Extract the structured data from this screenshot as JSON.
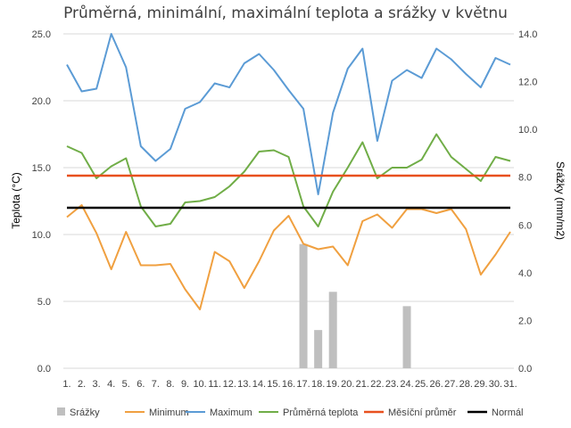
{
  "chart_data": {
    "type": "line",
    "title": "Průměrná, minimální, maximální teplota a srážky v květnu",
    "ylabel": "Teplota (°C)",
    "y2label": "Srážky (mm/m2)",
    "ylim": [
      0,
      25
    ],
    "y2lim": [
      0,
      14
    ],
    "yticks": [
      "0.0",
      "5.0",
      "10.0",
      "15.0",
      "20.0",
      "25.0"
    ],
    "y2ticks": [
      "0.0",
      "2.0",
      "4.0",
      "6.0",
      "8.0",
      "10.0",
      "12.0",
      "14.0"
    ],
    "categories": [
      "1.",
      "2.",
      "3.",
      "4.",
      "5.",
      "6.",
      "7.",
      "8.",
      "9.",
      "10.",
      "11.",
      "12.",
      "13.",
      "14.",
      "15.",
      "16.",
      "17.",
      "18.",
      "19.",
      "20.",
      "21.",
      "22.",
      "23.",
      "24.",
      "25.",
      "26.",
      "27.",
      "28.",
      "29.",
      "30.",
      "31."
    ],
    "grid": true,
    "legend_position": "bottom",
    "series": [
      {
        "name": "Srážky",
        "kind": "bar",
        "axis": "right",
        "color": "#bfbfbf",
        "values": [
          0,
          0,
          0,
          0,
          0,
          0,
          0,
          0,
          0,
          0,
          0,
          0,
          0,
          0,
          0,
          0,
          5.2,
          1.6,
          3.2,
          0,
          0,
          0,
          0,
          2.6,
          0,
          0,
          0,
          0,
          0,
          0,
          0
        ]
      },
      {
        "name": "Minimum",
        "kind": "line",
        "axis": "left",
        "color": "#f0a040",
        "values": [
          11.3,
          12.2,
          10.1,
          7.4,
          10.2,
          7.7,
          7.7,
          7.8,
          5.9,
          4.4,
          8.7,
          8.0,
          6.0,
          8.0,
          10.3,
          11.4,
          9.3,
          8.9,
          9.1,
          7.7,
          11.0,
          11.5,
          10.5,
          11.9,
          11.9,
          11.6,
          11.9,
          10.4,
          7.0,
          8.5,
          10.2
        ]
      },
      {
        "name": "Maximum",
        "kind": "line",
        "axis": "left",
        "color": "#5b9bd5",
        "values": [
          22.7,
          20.7,
          20.9,
          25.0,
          22.5,
          16.6,
          15.5,
          16.4,
          19.4,
          19.9,
          21.3,
          21.0,
          22.8,
          23.5,
          22.3,
          20.8,
          19.4,
          13.0,
          19.1,
          22.4,
          23.9,
          17.0,
          21.5,
          22.3,
          21.7,
          23.9,
          23.1,
          22.0,
          21.0,
          23.2,
          22.7
        ]
      },
      {
        "name": "Průměrná teplota",
        "kind": "line",
        "axis": "left",
        "color": "#70ad47",
        "values": [
          16.6,
          16.1,
          14.2,
          15.1,
          15.7,
          12.1,
          10.6,
          10.8,
          12.4,
          12.5,
          12.8,
          13.6,
          14.7,
          16.2,
          16.3,
          15.8,
          12.1,
          10.6,
          13.2,
          15.0,
          16.9,
          14.2,
          15.0,
          15.0,
          15.6,
          17.5,
          15.8,
          14.9,
          14.0,
          15.8,
          15.5
        ]
      },
      {
        "name": "Měsíční průměr",
        "kind": "line",
        "axis": "left",
        "color": "#e8501e",
        "values": [
          14.4,
          14.4,
          14.4,
          14.4,
          14.4,
          14.4,
          14.4,
          14.4,
          14.4,
          14.4,
          14.4,
          14.4,
          14.4,
          14.4,
          14.4,
          14.4,
          14.4,
          14.4,
          14.4,
          14.4,
          14.4,
          14.4,
          14.4,
          14.4,
          14.4,
          14.4,
          14.4,
          14.4,
          14.4,
          14.4,
          14.4
        ]
      },
      {
        "name": "Normál",
        "kind": "line",
        "axis": "left",
        "color": "#000000",
        "values": [
          12.0,
          12.0,
          12.0,
          12.0,
          12.0,
          12.0,
          12.0,
          12.0,
          12.0,
          12.0,
          12.0,
          12.0,
          12.0,
          12.0,
          12.0,
          12.0,
          12.0,
          12.0,
          12.0,
          12.0,
          12.0,
          12.0,
          12.0,
          12.0,
          12.0,
          12.0,
          12.0,
          12.0,
          12.0,
          12.0,
          12.0
        ]
      }
    ]
  }
}
